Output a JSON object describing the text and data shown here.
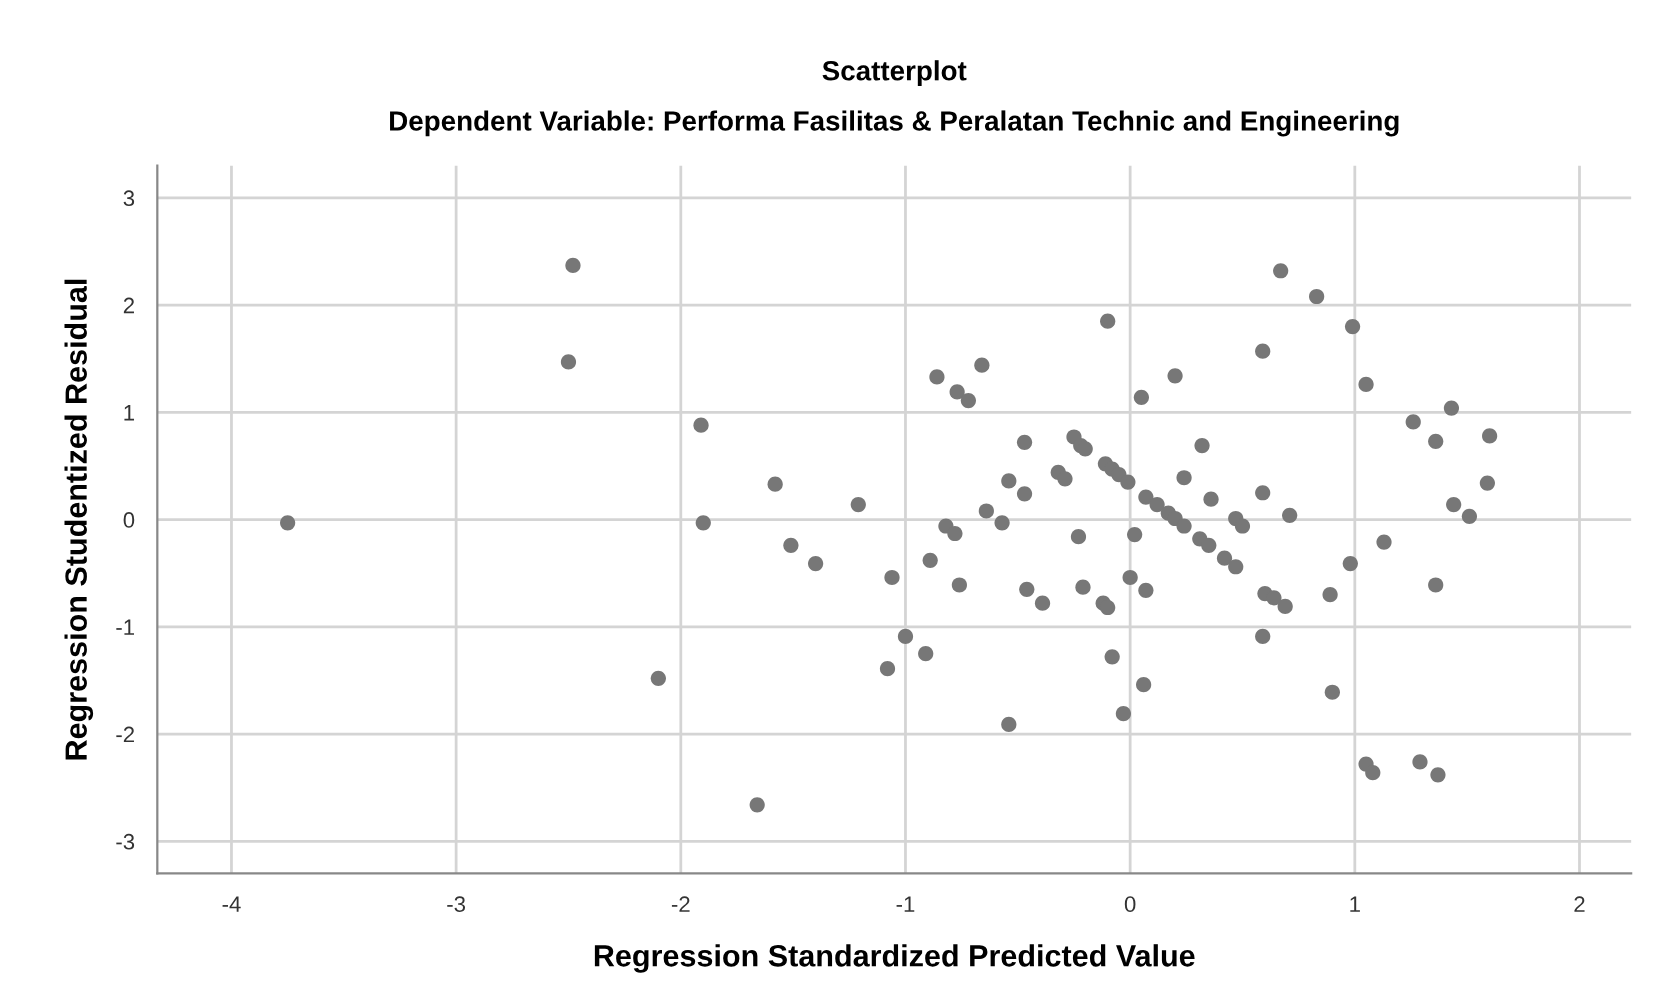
{
  "chart_data": {
    "type": "scatter",
    "title": "Scatterplot",
    "subtitle": "Dependent Variable: Performa Fasilitas & Peralatan Technic and Engineering",
    "xlabel": "Regression Standardized Predicted Value",
    "ylabel": "Regression Studentized Residual",
    "xlim": [
      -4.33,
      2.23
    ],
    "ylim": [
      -3.3,
      3.3
    ],
    "xticks": [
      -4,
      -3,
      -2,
      -1,
      0,
      1,
      2
    ],
    "yticks": [
      -3,
      -2,
      -1,
      0,
      1,
      2,
      3
    ],
    "grid": true,
    "marker": "circle",
    "series": [
      {
        "color": "#777777",
        "x": [
          -3.75,
          -2.48,
          -2.5,
          -2.1,
          -0.1,
          -0.86,
          -0.77,
          -0.72,
          -0.66,
          0.05,
          -1.91,
          -1.9,
          -1.58,
          -1.51,
          -1.4,
          -1.21,
          -0.47,
          -0.54,
          -0.47,
          -0.64,
          -0.57,
          -0.82,
          -0.78,
          -0.89,
          -1.06,
          -0.76,
          -1.0,
          -0.91,
          -1.08,
          -0.54,
          -1.66,
          -0.25,
          -0.22,
          -0.2,
          -0.32,
          -0.29,
          -0.11,
          -0.08,
          -0.05,
          -0.01,
          0.07,
          0.12,
          -0.23,
          0.02,
          -0.46,
          -0.39,
          -0.21,
          -0.12,
          -0.1,
          0.0,
          0.07,
          -0.08,
          0.06,
          -0.03,
          0.67,
          0.83,
          0.99,
          0.59,
          0.2,
          1.05,
          1.26,
          1.43,
          1.36,
          1.6,
          1.59,
          1.44,
          1.51,
          1.13,
          1.36,
          0.98,
          0.89,
          0.32,
          0.24,
          0.36,
          0.59,
          0.71,
          0.17,
          0.2,
          0.24,
          0.31,
          0.35,
          0.42,
          0.47,
          0.47,
          0.5,
          0.6,
          0.64,
          0.69,
          0.59,
          0.9,
          1.05,
          1.08,
          1.29,
          1.37
        ],
        "values": [
          -0.03,
          2.37,
          1.47,
          -1.48,
          1.85,
          1.33,
          1.19,
          1.11,
          1.44,
          1.14,
          0.88,
          -0.03,
          0.33,
          -0.24,
          -0.41,
          0.14,
          0.72,
          0.36,
          0.24,
          0.08,
          -0.03,
          -0.06,
          -0.13,
          -0.38,
          -0.54,
          -0.61,
          -1.09,
          -1.25,
          -1.39,
          -1.91,
          -2.66,
          0.77,
          0.69,
          0.66,
          0.44,
          0.38,
          0.52,
          0.47,
          0.42,
          0.35,
          0.21,
          0.14,
          -0.16,
          -0.14,
          -0.65,
          -0.78,
          -0.63,
          -0.78,
          -0.82,
          -0.54,
          -0.66,
          -1.28,
          -1.54,
          -1.81,
          2.32,
          2.08,
          1.8,
          1.57,
          1.34,
          1.26,
          0.91,
          1.04,
          0.73,
          0.78,
          0.34,
          0.14,
          0.03,
          -0.21,
          -0.61,
          -0.41,
          -0.7,
          0.69,
          0.39,
          0.19,
          0.25,
          0.04,
          0.06,
          0.01,
          -0.06,
          -0.18,
          -0.24,
          -0.36,
          -0.44,
          0.01,
          -0.06,
          -0.69,
          -0.73,
          -0.81,
          -1.09,
          -1.61,
          -2.28,
          -2.36,
          -2.26,
          -2.38
        ]
      }
    ]
  }
}
